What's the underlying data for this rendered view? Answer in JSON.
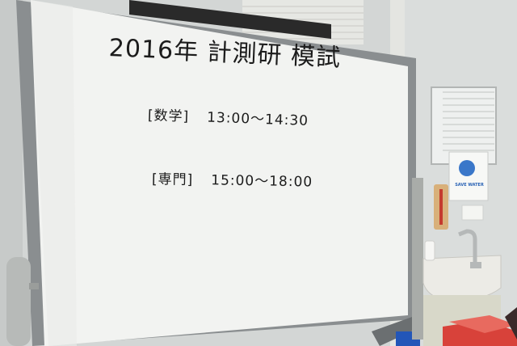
{
  "whiteboard": {
    "title": "2016年 計測研 模試",
    "schedule": [
      {
        "subject": "[数学]",
        "time": "13:00～14:30"
      },
      {
        "subject": "[専門]",
        "time": "15:00～18:00"
      }
    ]
  },
  "wall_sign": {
    "text": "SAVE WATER"
  },
  "colors": {
    "board": "#f2f3f1",
    "frame": "#8a8e90",
    "wall": "#d9dcdb",
    "sink": "#ecebe6",
    "sign_blue": "#2a63b5",
    "red_box": "#d8423a"
  }
}
